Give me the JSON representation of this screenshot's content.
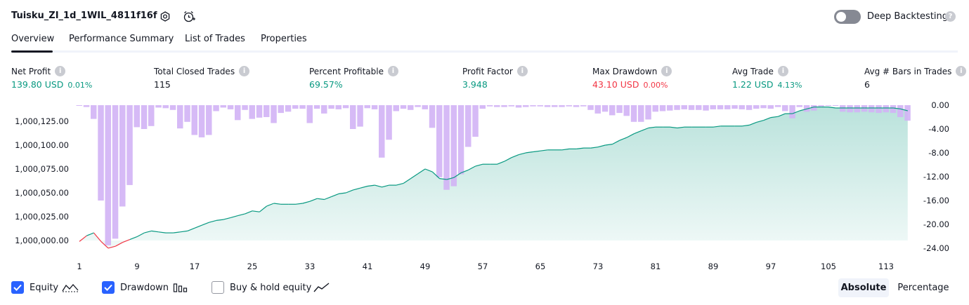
{
  "header": {
    "title": "Tuisku_ZI_1d_1WIL_4811f16f",
    "settings_icon": "gear-icon",
    "alert_icon": "alarm-clock-icon",
    "deep_backtesting_label": "Deep Backtesting",
    "deep_backtesting_enabled": false,
    "help_icon": "?"
  },
  "tabs": [
    {
      "label": "Overview",
      "active": true
    },
    {
      "label": "Performance Summary",
      "active": false
    },
    {
      "label": "List of Trades",
      "active": false
    },
    {
      "label": "Properties",
      "active": false
    }
  ],
  "metrics": [
    {
      "label": "Net Profit",
      "value": "139.80 USD",
      "sub": "0.01%",
      "color": "#089981",
      "info": "i"
    },
    {
      "label": "Total Closed Trades",
      "value": "115",
      "sub": "",
      "color": "#131722",
      "info": "i"
    },
    {
      "label": "Percent Profitable",
      "value": "69.57%",
      "sub": "",
      "color": "#089981",
      "info": "i"
    },
    {
      "label": "Profit Factor",
      "value": "3.948",
      "sub": "",
      "color": "#089981",
      "info": "i"
    },
    {
      "label": "Max Drawdown",
      "value": "43.10 USD",
      "sub": "0.00%",
      "color": "#f23645",
      "info": "i"
    },
    {
      "label": "Avg Trade",
      "value": "1.22 USD",
      "sub": "4.13%",
      "color": "#089981",
      "info": "i"
    },
    {
      "label": "Avg # Bars in Trades",
      "value": "6",
      "sub": "",
      "color": "#131722",
      "info": "i"
    }
  ],
  "chart_data": {
    "type": "area",
    "x_ticks": [
      "1",
      "9",
      "17",
      "25",
      "33",
      "41",
      "49",
      "57",
      "65",
      "73",
      "81",
      "89",
      "97",
      "105",
      "113"
    ],
    "y_left_ticks": [
      "1,000,000.00",
      "1,000,025.00",
      "1,000,050.00",
      "1,000,075.00",
      "1,000,100.00",
      "1,000,125.00"
    ],
    "y_right_ticks": [
      "0.00",
      "-4.00",
      "-8.00",
      "-12.00",
      "-16.00",
      "-20.00",
      "-24.00"
    ],
    "y_left_range": [
      999990,
      1000140
    ],
    "y_right_range": [
      -24,
      0
    ],
    "equity_series": {
      "name": "Equity",
      "color": "#089981",
      "x": [
        1,
        2,
        3,
        4,
        5,
        6,
        7,
        8,
        9,
        10,
        11,
        12,
        13,
        14,
        15,
        16,
        17,
        18,
        19,
        20,
        21,
        22,
        23,
        24,
        25,
        26,
        27,
        28,
        29,
        30,
        31,
        32,
        33,
        34,
        35,
        36,
        37,
        38,
        39,
        40,
        41,
        42,
        43,
        44,
        45,
        46,
        47,
        48,
        49,
        50,
        51,
        52,
        53,
        54,
        55,
        56,
        57,
        58,
        59,
        60,
        61,
        62,
        63,
        64,
        65,
        66,
        67,
        68,
        69,
        70,
        71,
        72,
        73,
        74,
        75,
        76,
        77,
        78,
        79,
        80,
        81,
        82,
        83,
        84,
        85,
        86,
        87,
        88,
        89,
        90,
        91,
        92,
        93,
        94,
        95,
        96,
        97,
        98,
        99,
        100,
        101,
        102,
        103,
        104,
        105,
        106,
        107,
        108,
        109,
        110,
        111,
        112,
        113,
        114,
        115,
        116
      ],
      "values": [
        999999,
        1000005,
        1000008,
        999999,
        999992,
        999994,
        999998,
        1000001,
        1000004,
        1000008,
        1000010,
        1000009,
        1000008,
        1000008,
        1000009,
        1000010,
        1000013,
        1000016,
        1000019,
        1000021,
        1000022,
        1000024,
        1000026,
        1000028,
        1000031,
        1000030,
        1000036,
        1000039,
        1000038,
        1000038,
        1000038,
        1000039,
        1000041,
        1000044,
        1000043,
        1000046,
        1000049,
        1000050,
        1000053,
        1000055,
        1000057,
        1000058,
        1000056,
        1000058,
        1000058,
        1000060,
        1000065,
        1000070,
        1000075,
        1000072,
        1000065,
        1000064,
        1000066,
        1000071,
        1000074,
        1000078,
        1000080,
        1000080,
        1000080,
        1000083,
        1000087,
        1000090,
        1000092,
        1000093,
        1000094,
        1000095,
        1000095,
        1000095,
        1000096,
        1000096,
        1000097,
        1000097,
        1000098,
        1000100,
        1000101,
        1000105,
        1000108,
        1000112,
        1000115,
        1000118,
        1000119,
        1000119,
        1000119,
        1000118,
        1000119,
        1000119,
        1000119,
        1000119,
        1000119,
        1000120,
        1000120,
        1000120,
        1000120,
        1000121,
        1000124,
        1000126,
        1000129,
        1000130,
        1000133,
        1000133,
        1000136,
        1000138,
        1000140,
        1000140,
        1000140,
        1000139,
        1000139,
        1000139,
        1000139,
        1000139,
        1000139,
        1000139,
        1000139,
        1000139,
        1000138,
        1000136
      ]
    },
    "drawdown_series": {
      "name": "Drawdown",
      "color": "#d1b3f5",
      "values": [
        -0.1,
        -0.3,
        -2.3,
        -16.0,
        -23.5,
        -22.4,
        -17.0,
        -13.4,
        -3.7,
        -4.0,
        -3.5,
        -0.4,
        -0.5,
        -0.8,
        -3.9,
        -2.8,
        -5.0,
        -5.4,
        -5.0,
        -1.0,
        -0.4,
        -0.7,
        -2.5,
        -0.8,
        -2.3,
        -2.1,
        -2.0,
        -3.0,
        -1.3,
        -1.1,
        -0.6,
        -0.6,
        -3.0,
        -0.6,
        -1.4,
        -0.6,
        -0.7,
        -0.5,
        -4.0,
        -3.6,
        -0.5,
        -0.7,
        -8.8,
        -5.8,
        -1.0,
        -0.6,
        -0.8,
        -0.3,
        -0.7,
        -3.8,
        -12.1,
        -14.2,
        -13.6,
        -11.6,
        -7.0,
        -5.3,
        -0.6,
        -0.2,
        -0.3,
        -0.3,
        -0.2,
        -0.4,
        -0.3,
        -0.2,
        -0.2,
        -0.3,
        -0.3,
        -0.3,
        -0.2,
        -0.3,
        -0.2,
        -0.8,
        -1.4,
        -1.1,
        -1.7,
        -1.3,
        -1.8,
        -2.8,
        -2.8,
        -2.4,
        -1.1,
        -1.0,
        -0.9,
        -0.8,
        -0.7,
        -0.8,
        -0.8,
        -0.9,
        -0.7,
        -0.7,
        -0.7,
        -0.6,
        -0.7,
        -0.8,
        -0.6,
        -0.5,
        -0.6,
        -0.3,
        -1.0,
        -2.2,
        -0.3,
        -1.1,
        -0.9,
        -0.2,
        -0.1,
        -0.1,
        -1.1,
        -1.2,
        -1.2,
        -1.1,
        -1.2,
        -1.3,
        -1.2,
        -1.3,
        -2.0,
        -2.6
      ]
    },
    "legend_placement": "bottom-left"
  },
  "legend": {
    "items": [
      {
        "label": "Equity",
        "checked": true,
        "icon": "equity-line-icon"
      },
      {
        "label": "Drawdown",
        "checked": true,
        "icon": "drawdown-bars-icon"
      },
      {
        "label": "Buy & hold equity",
        "checked": false,
        "icon": "buy-hold-line-icon"
      }
    ],
    "modes": [
      {
        "label": "Absolute",
        "active": true
      },
      {
        "label": "Percentage",
        "active": false
      }
    ]
  }
}
